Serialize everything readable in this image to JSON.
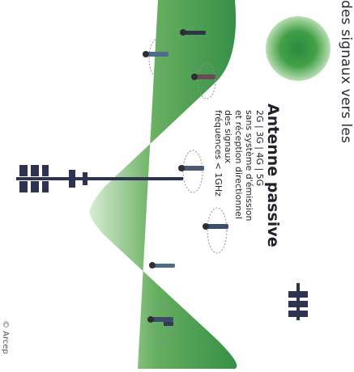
{
  "caption": "des signaux vers les",
  "legend": {
    "title": "Antenne passive",
    "lines": [
      "2G | 3G | 4G | 5G",
      "sans système d'émission",
      "et réception directionnel",
      "des signaux",
      "fréquences < 1GHz"
    ]
  },
  "credit": "© Arcep",
  "colors": {
    "coverage_dark": "#2b8a3e",
    "coverage_light": "#d9eed3",
    "antenna": "#2d3350",
    "person_ring": "#9aa0a6"
  }
}
